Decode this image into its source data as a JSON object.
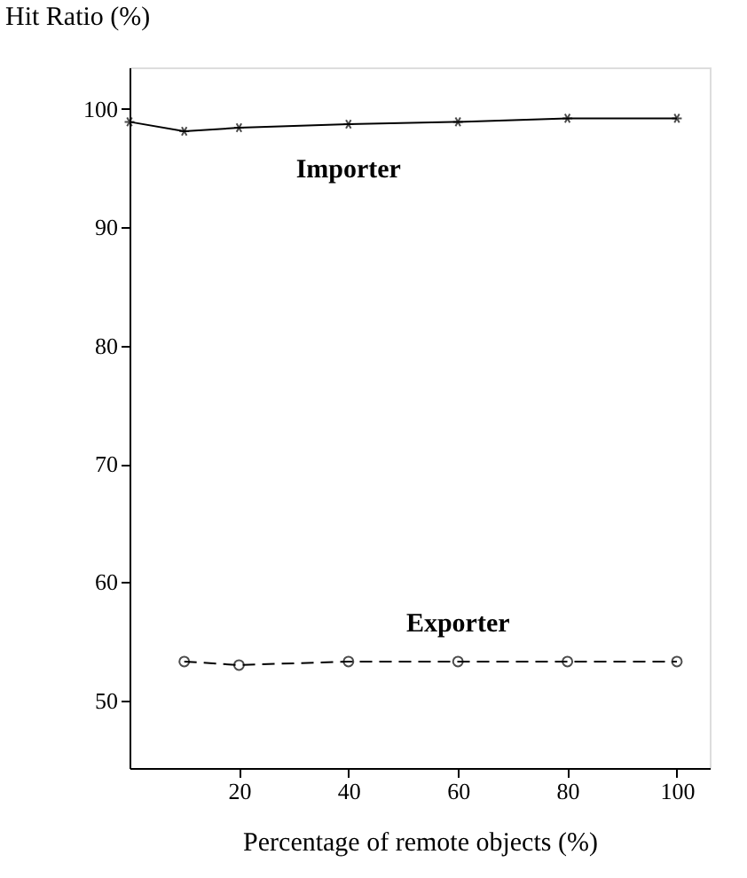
{
  "chart_data": {
    "type": "line",
    "xlabel": "Percentage of remote objects (%)",
    "ylabel": "Hit Ratio (%)",
    "xlim": [
      0,
      106
    ],
    "xticks": [
      20,
      40,
      60,
      80,
      100
    ],
    "ylim": [
      44.3,
      103.5
    ],
    "yticks": [
      50,
      60,
      70,
      80,
      90,
      100
    ],
    "grid": false,
    "legend": false,
    "series": [
      {
        "name": "Importer",
        "color": "#000000",
        "marker": "cross",
        "line_style": "solid",
        "x": [
          0,
          10,
          20,
          40,
          60,
          80,
          100
        ],
        "values": [
          98.9,
          98.1,
          98.4,
          98.7,
          98.9,
          99.2,
          99.2
        ]
      },
      {
        "name": "Exporter",
        "color": "#000000",
        "marker": "circle",
        "line_style": "dashed",
        "x": [
          10,
          20,
          40,
          60,
          80,
          100
        ],
        "values": [
          53.3,
          53.0,
          53.3,
          53.3,
          53.3,
          53.3
        ]
      }
    ]
  }
}
